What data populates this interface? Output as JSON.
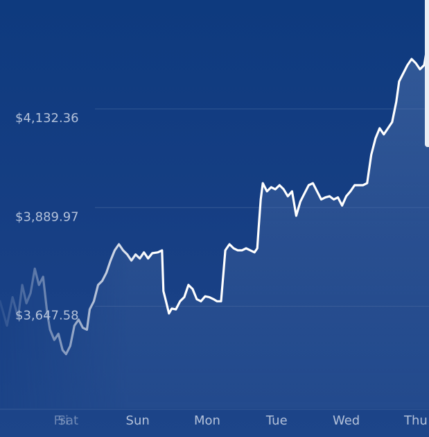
{
  "chart_data": {
    "type": "area",
    "title": "",
    "xlabel": "",
    "ylabel": "",
    "y_ticks": [
      {
        "value": 4132.36,
        "label": "$4,132.36"
      },
      {
        "value": 3889.97,
        "label": "$3,889.97"
      },
      {
        "value": 3647.58,
        "label": "$3,647.58"
      }
    ],
    "x_ticks": [
      {
        "x": -0.1,
        "label": "Fri"
      },
      {
        "x": 0,
        "label": "Sat"
      },
      {
        "x": 1,
        "label": "Sun"
      },
      {
        "x": 2,
        "label": "Mon"
      },
      {
        "x": 3,
        "label": "Tue"
      },
      {
        "x": 4,
        "label": "Wed"
      },
      {
        "x": 5,
        "label": "Thu"
      }
    ],
    "xlim": [
      -0.98,
      5.19
    ],
    "ylim": [
      3398,
      4400
    ],
    "grid": true,
    "series": [
      {
        "name": "",
        "points": [
          [
            -0.98,
            3660
          ],
          [
            -0.88,
            3600
          ],
          [
            -0.8,
            3670
          ],
          [
            -0.72,
            3620
          ],
          [
            -0.66,
            3700
          ],
          [
            -0.6,
            3655
          ],
          [
            -0.54,
            3680
          ],
          [
            -0.48,
            3740
          ],
          [
            -0.42,
            3700
          ],
          [
            -0.36,
            3720
          ],
          [
            -0.3,
            3630
          ],
          [
            -0.26,
            3590
          ],
          [
            -0.2,
            3565
          ],
          [
            -0.14,
            3580
          ],
          [
            -0.08,
            3540
          ],
          [
            -0.03,
            3530
          ],
          [
            0.03,
            3550
          ],
          [
            0.09,
            3600
          ],
          [
            0.15,
            3615
          ],
          [
            0.21,
            3595
          ],
          [
            0.27,
            3590
          ],
          [
            0.31,
            3640
          ],
          [
            0.37,
            3660
          ],
          [
            0.43,
            3700
          ],
          [
            0.49,
            3710
          ],
          [
            0.55,
            3730
          ],
          [
            0.61,
            3760
          ],
          [
            0.67,
            3785
          ],
          [
            0.73,
            3800
          ],
          [
            0.79,
            3785
          ],
          [
            0.85,
            3775
          ],
          [
            0.91,
            3760
          ],
          [
            0.97,
            3775
          ],
          [
            1.03,
            3765
          ],
          [
            1.09,
            3780
          ],
          [
            1.15,
            3765
          ],
          [
            1.21,
            3778
          ],
          [
            1.29,
            3780
          ],
          [
            1.35,
            3785
          ],
          [
            1.37,
            3685
          ],
          [
            1.41,
            3658
          ],
          [
            1.45,
            3630
          ],
          [
            1.49,
            3642
          ],
          [
            1.55,
            3640
          ],
          [
            1.61,
            3660
          ],
          [
            1.67,
            3670
          ],
          [
            1.73,
            3700
          ],
          [
            1.79,
            3690
          ],
          [
            1.85,
            3665
          ],
          [
            1.91,
            3660
          ],
          [
            1.97,
            3672
          ],
          [
            2.03,
            3670
          ],
          [
            2.09,
            3665
          ],
          [
            2.14,
            3660
          ],
          [
            2.2,
            3660
          ],
          [
            2.26,
            3785
          ],
          [
            2.32,
            3800
          ],
          [
            2.38,
            3790
          ],
          [
            2.44,
            3785
          ],
          [
            2.5,
            3785
          ],
          [
            2.56,
            3790
          ],
          [
            2.62,
            3785
          ],
          [
            2.68,
            3780
          ],
          [
            2.72,
            3790
          ],
          [
            2.74,
            3840
          ],
          [
            2.77,
            3910
          ],
          [
            2.8,
            3950
          ],
          [
            2.86,
            3930
          ],
          [
            2.92,
            3940
          ],
          [
            2.98,
            3935
          ],
          [
            3.04,
            3945
          ],
          [
            3.1,
            3935
          ],
          [
            3.16,
            3918
          ],
          [
            3.22,
            3930
          ],
          [
            3.28,
            3870
          ],
          [
            3.34,
            3905
          ],
          [
            3.4,
            3925
          ],
          [
            3.46,
            3945
          ],
          [
            3.52,
            3950
          ],
          [
            3.58,
            3930
          ],
          [
            3.64,
            3910
          ],
          [
            3.7,
            3915
          ],
          [
            3.76,
            3918
          ],
          [
            3.82,
            3910
          ],
          [
            3.88,
            3915
          ],
          [
            3.94,
            3895
          ],
          [
            4.0,
            3918
          ],
          [
            4.06,
            3930
          ],
          [
            4.12,
            3945
          ],
          [
            4.18,
            3945
          ],
          [
            4.24,
            3945
          ],
          [
            4.3,
            3950
          ],
          [
            4.36,
            4020
          ],
          [
            4.42,
            4060
          ],
          [
            4.48,
            4085
          ],
          [
            4.54,
            4070
          ],
          [
            4.6,
            4085
          ],
          [
            4.66,
            4100
          ],
          [
            4.72,
            4150
          ],
          [
            4.76,
            4200
          ],
          [
            4.82,
            4220
          ],
          [
            4.88,
            4240
          ],
          [
            4.94,
            4255
          ],
          [
            5.0,
            4245
          ],
          [
            5.06,
            4230
          ],
          [
            5.12,
            4240
          ],
          [
            5.19,
            4310
          ]
        ]
      }
    ]
  }
}
